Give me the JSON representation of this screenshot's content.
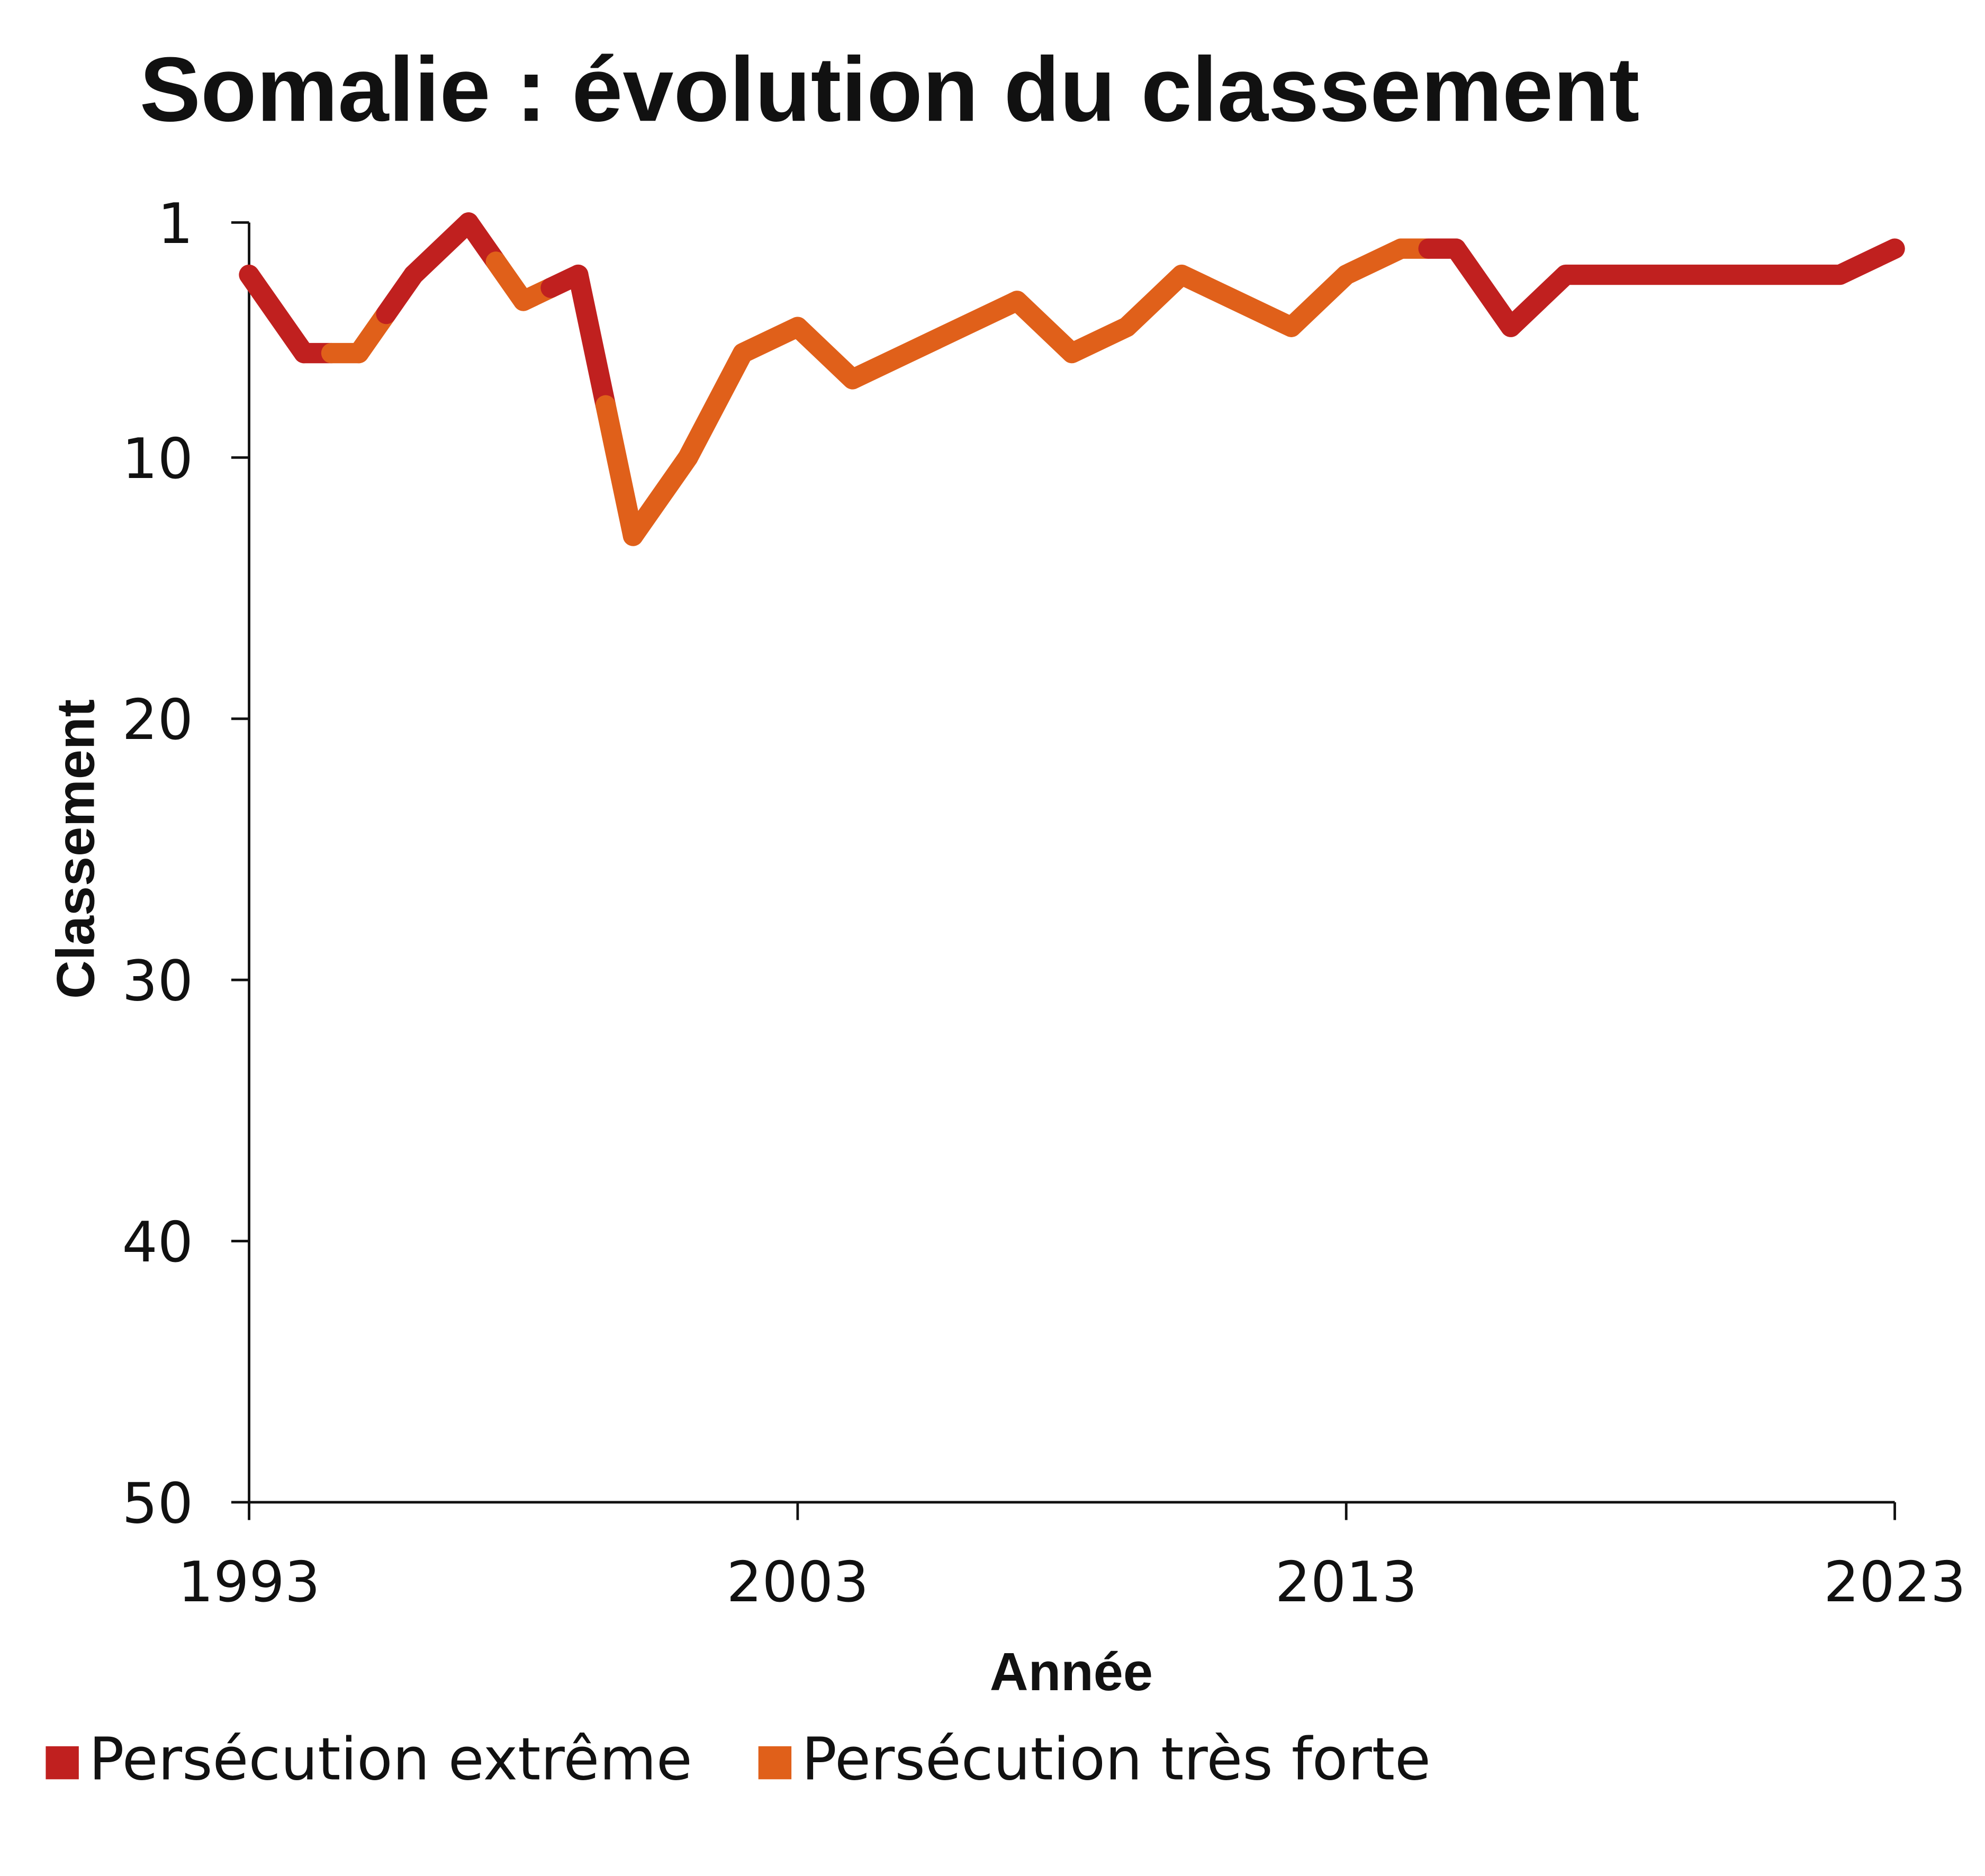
{
  "chart_data": {
    "type": "line",
    "title": "Somalie : évolution du classement",
    "x_label": "Année",
    "y_label": "Classement",
    "x": [
      1993,
      1994,
      1995,
      1996,
      1997,
      1998,
      1999,
      2000,
      2001,
      2002,
      2003,
      2004,
      2005,
      2006,
      2007,
      2008,
      2009,
      2010,
      2011,
      2012,
      2013,
      2014,
      2015,
      2016,
      2017,
      2018,
      2019,
      2020,
      2021,
      2022,
      2023
    ],
    "series": [
      {
        "name": "Persécution extrême",
        "color": "#c0201f",
        "values": [
          3,
          6,
          null,
          3,
          1,
          null,
          3,
          null,
          null,
          null,
          null,
          null,
          null,
          null,
          null,
          null,
          null,
          null,
          null,
          null,
          null,
          null,
          2,
          5,
          3,
          3,
          3,
          3,
          3,
          3,
          2
        ]
      },
      {
        "name": "Persécution très forte",
        "color": "#e0601a",
        "values": [
          null,
          null,
          6,
          null,
          null,
          4,
          null,
          13,
          10,
          6,
          5,
          7,
          6,
          5,
          4,
          6,
          5,
          3,
          4,
          5,
          3,
          2,
          null,
          null,
          null,
          null,
          null,
          null,
          null,
          null,
          null
        ]
      }
    ],
    "xlim": [
      1993,
      2023
    ],
    "xticks": [
      1993,
      2003,
      2013,
      2023
    ],
    "ylim": [
      1,
      50
    ],
    "yticks": [
      1,
      10,
      20,
      30,
      40,
      50
    ],
    "y_inverted": true
  }
}
